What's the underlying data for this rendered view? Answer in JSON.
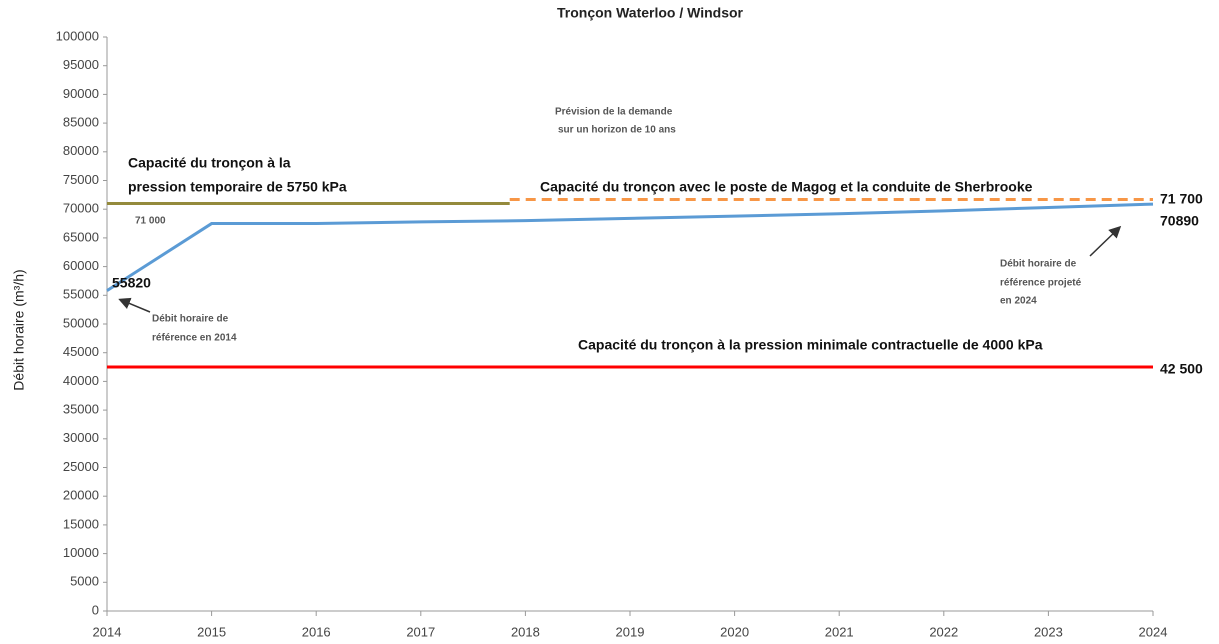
{
  "chart_data": {
    "type": "line",
    "title": "Tronçon Waterloo / Windsor",
    "y_label": "Débit horaire (m³/h)",
    "xlim": [
      2014,
      2024
    ],
    "xticks": [
      2014,
      2015,
      2016,
      2017,
      2018,
      2019,
      2020,
      2021,
      2022,
      2023,
      2024
    ],
    "ylim": [
      0,
      100000
    ],
    "yticks": [
      0,
      5000,
      10000,
      15000,
      20000,
      25000,
      30000,
      35000,
      40000,
      45000,
      50000,
      55000,
      60000,
      65000,
      70000,
      75000,
      80000,
      85000,
      90000,
      95000,
      100000
    ],
    "grid": false,
    "series": [
      {
        "color": "#5b9bd5",
        "dash": false,
        "x": [
          2014,
          2015,
          2016,
          2017,
          2018,
          2019,
          2020,
          2021,
          2022,
          2023,
          2024
        ],
        "values": [
          55820,
          67500,
          67500,
          67800,
          68000,
          68400,
          68800,
          69200,
          69700,
          70300,
          70890
        ]
      },
      {
        "color": "#948a3c",
        "dash": false,
        "x": [
          2014,
          2017.85
        ],
        "values": [
          71000,
          71000
        ],
        "value_labels": [
          "71 000",
          null
        ]
      },
      {
        "color": "#f79646",
        "dash": true,
        "x": [
          2017.85,
          2024
        ],
        "values": [
          71700,
          71700
        ],
        "value_labels": [
          null,
          "71 700"
        ]
      },
      {
        "color": "#ff0000",
        "dash": false,
        "x": [
          2014,
          2024
        ],
        "values": [
          42500,
          42500
        ],
        "value_labels": [
          null,
          "42 500"
        ]
      }
    ],
    "annotations": [
      "Prévision de la demande",
      "sur un horizon de 10 ans",
      "Capacité du tronçon à la",
      "pression temporaire de 5750 kPa",
      "Capacité du tronçon avec le poste de Magog et la conduite de Sherbrooke",
      "Capacité du tronçon à la pression minimale contractuelle de 4000 kPa",
      "Débit horaire de",
      "référence en 2014",
      "Débit horaire de",
      "référence projeté",
      "en 2024"
    ]
  }
}
